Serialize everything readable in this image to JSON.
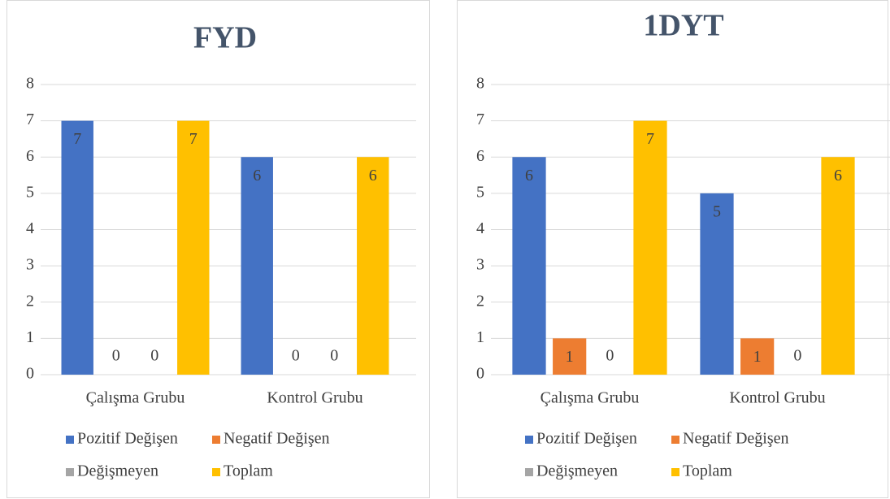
{
  "chart_data": [
    {
      "type": "bar",
      "title": "FYD",
      "categories": [
        "Çalışma Grubu",
        "Kontrol Grubu"
      ],
      "series": [
        {
          "name": "Pozitif Değişen",
          "color": "#4472c4",
          "values": [
            7,
            6
          ]
        },
        {
          "name": "Negatif Değişen",
          "color": "#ed7d31",
          "values": [
            0,
            0
          ]
        },
        {
          "name": "Değişmeyen",
          "color": "#a5a5a5",
          "values": [
            0,
            0
          ]
        },
        {
          "name": "Toplam",
          "color": "#ffc000",
          "values": [
            7,
            6
          ]
        }
      ],
      "ylim": [
        0,
        8
      ],
      "yticks": [
        0,
        1,
        2,
        3,
        4,
        5,
        6,
        7,
        8
      ],
      "grid": true,
      "legend": "bottom"
    },
    {
      "type": "bar",
      "title": "1DYT",
      "categories": [
        "Çalışma Grubu",
        "Kontrol Grubu"
      ],
      "series": [
        {
          "name": "Pozitif Değişen",
          "color": "#4472c4",
          "values": [
            6,
            5
          ]
        },
        {
          "name": "Negatif Değişen",
          "color": "#ed7d31",
          "values": [
            1,
            1
          ]
        },
        {
          "name": "Değişmeyen",
          "color": "#a5a5a5",
          "values": [
            0,
            0
          ]
        },
        {
          "name": "Toplam",
          "color": "#ffc000",
          "values": [
            7,
            6
          ]
        }
      ],
      "ylim": [
        0,
        8
      ],
      "yticks": [
        0,
        1,
        2,
        3,
        4,
        5,
        6,
        7,
        8
      ],
      "grid": true,
      "legend": "bottom"
    }
  ]
}
